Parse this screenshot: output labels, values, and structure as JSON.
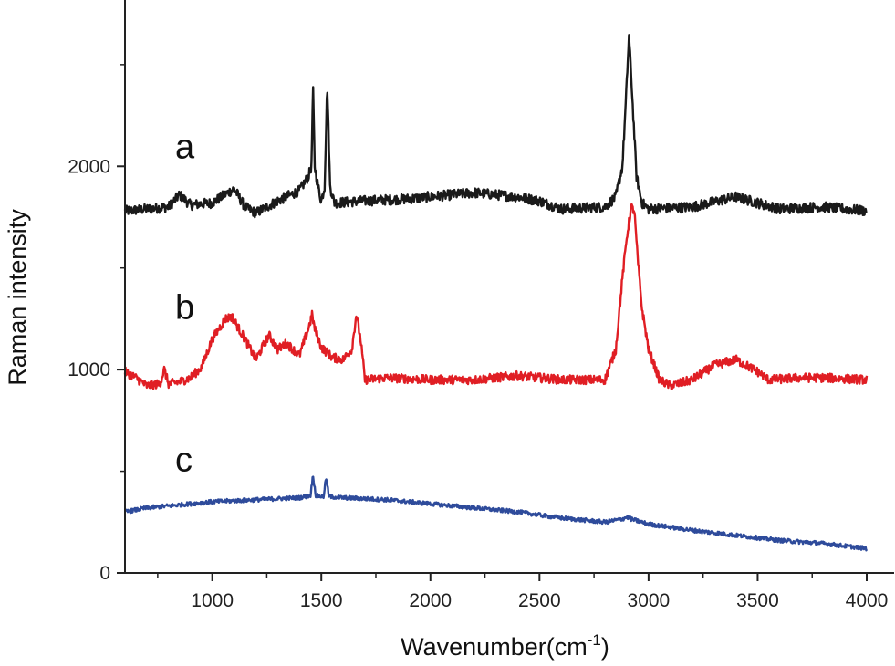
{
  "chart_data": {
    "type": "line",
    "title": "",
    "xlabel": {
      "text": "Wavenumber(cm",
      "superscript": "-1",
      "suffix": ")"
    },
    "ylabel": "Raman intensity",
    "xlim": [
      600,
      4000
    ],
    "ylim": [
      0,
      2800
    ],
    "xticks": [
      1000,
      1500,
      2000,
      2500,
      3000,
      3500,
      4000
    ],
    "xtick_labels": [
      "1000",
      "1500",
      "2000",
      "2500",
      "3000",
      "3500",
      "4000"
    ],
    "yticks": [
      0,
      1000,
      2000
    ],
    "ytick_labels": [
      "0",
      "1000",
      "2000"
    ],
    "grid": false,
    "series": [
      {
        "name": "a",
        "label": "a",
        "color": "#1a1a1a",
        "label_at": [
          830,
          2040
        ],
        "noise": 25,
        "points": [
          [
            600,
            1780
          ],
          [
            700,
            1790
          ],
          [
            800,
            1800
          ],
          [
            850,
            1860
          ],
          [
            900,
            1810
          ],
          [
            1000,
            1820
          ],
          [
            1100,
            1890
          ],
          [
            1150,
            1800
          ],
          [
            1200,
            1770
          ],
          [
            1300,
            1830
          ],
          [
            1400,
            1880
          ],
          [
            1440,
            1950
          ],
          [
            1455,
            2000
          ],
          [
            1462,
            2390
          ],
          [
            1470,
            2000
          ],
          [
            1485,
            1900
          ],
          [
            1500,
            1830
          ],
          [
            1515,
            1900
          ],
          [
            1527,
            2400
          ],
          [
            1540,
            1900
          ],
          [
            1560,
            1820
          ],
          [
            1700,
            1830
          ],
          [
            1900,
            1840
          ],
          [
            2200,
            1870
          ],
          [
            2400,
            1850
          ],
          [
            2500,
            1830
          ],
          [
            2600,
            1790
          ],
          [
            2800,
            1800
          ],
          [
            2850,
            1850
          ],
          [
            2880,
            2000
          ],
          [
            2895,
            2300
          ],
          [
            2910,
            2640
          ],
          [
            2925,
            2350
          ],
          [
            2945,
            1950
          ],
          [
            2970,
            1820
          ],
          [
            3000,
            1790
          ],
          [
            3200,
            1800
          ],
          [
            3400,
            1850
          ],
          [
            3600,
            1790
          ],
          [
            3800,
            1800
          ],
          [
            4000,
            1780
          ]
        ]
      },
      {
        "name": "b",
        "label": "b",
        "color": "#e01e24",
        "label_at": [
          830,
          1250
        ],
        "noise": 22,
        "points": [
          [
            600,
            990
          ],
          [
            650,
            960
          ],
          [
            700,
            920
          ],
          [
            760,
            930
          ],
          [
            780,
            1000
          ],
          [
            800,
            930
          ],
          [
            850,
            940
          ],
          [
            900,
            960
          ],
          [
            950,
            1010
          ],
          [
            1000,
            1150
          ],
          [
            1060,
            1250
          ],
          [
            1090,
            1260
          ],
          [
            1150,
            1150
          ],
          [
            1200,
            1050
          ],
          [
            1260,
            1170
          ],
          [
            1300,
            1100
          ],
          [
            1340,
            1130
          ],
          [
            1400,
            1070
          ],
          [
            1440,
            1200
          ],
          [
            1458,
            1270
          ],
          [
            1470,
            1200
          ],
          [
            1500,
            1110
          ],
          [
            1550,
            1060
          ],
          [
            1600,
            1050
          ],
          [
            1640,
            1100
          ],
          [
            1660,
            1270
          ],
          [
            1680,
            1150
          ],
          [
            1700,
            950
          ],
          [
            1800,
            960
          ],
          [
            2000,
            950
          ],
          [
            2200,
            950
          ],
          [
            2400,
            970
          ],
          [
            2600,
            950
          ],
          [
            2800,
            950
          ],
          [
            2850,
            1100
          ],
          [
            2880,
            1450
          ],
          [
            2900,
            1650
          ],
          [
            2920,
            1800
          ],
          [
            2935,
            1780
          ],
          [
            2950,
            1550
          ],
          [
            2970,
            1300
          ],
          [
            3000,
            1100
          ],
          [
            3050,
            950
          ],
          [
            3100,
            920
          ],
          [
            3200,
            950
          ],
          [
            3300,
            1020
          ],
          [
            3400,
            1050
          ],
          [
            3500,
            990
          ],
          [
            3550,
            950
          ],
          [
            3700,
            960
          ],
          [
            3800,
            960
          ],
          [
            4000,
            950
          ]
        ]
      },
      {
        "name": "c",
        "label": "c",
        "color": "#2e4b9b",
        "label_at": [
          830,
          500
        ],
        "noise": 10,
        "points": [
          [
            600,
            300
          ],
          [
            700,
            320
          ],
          [
            800,
            330
          ],
          [
            1000,
            350
          ],
          [
            1200,
            360
          ],
          [
            1400,
            370
          ],
          [
            1450,
            380
          ],
          [
            1462,
            480
          ],
          [
            1475,
            380
          ],
          [
            1510,
            375
          ],
          [
            1522,
            470
          ],
          [
            1535,
            375
          ],
          [
            1600,
            370
          ],
          [
            1800,
            360
          ],
          [
            2000,
            340
          ],
          [
            2200,
            320
          ],
          [
            2400,
            300
          ],
          [
            2600,
            270
          ],
          [
            2800,
            250
          ],
          [
            2880,
            265
          ],
          [
            2900,
            275
          ],
          [
            2920,
            265
          ],
          [
            3000,
            240
          ],
          [
            3200,
            210
          ],
          [
            3400,
            185
          ],
          [
            3600,
            160
          ],
          [
            3800,
            145
          ],
          [
            4000,
            120
          ]
        ]
      }
    ]
  }
}
